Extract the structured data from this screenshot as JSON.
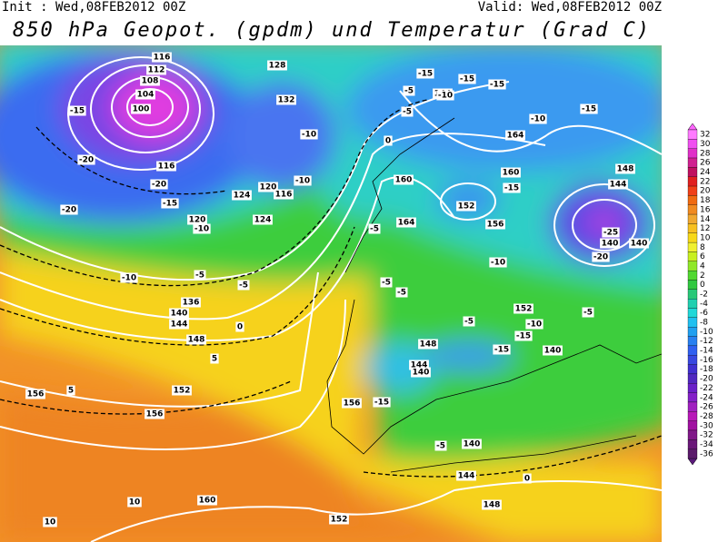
{
  "header": {
    "init": "Init : Wed,08FEB2012 00Z",
    "valid": "Valid: Wed,08FEB2012 00Z",
    "title": "850 hPa Geopot. (gpdm) und Temperatur (Grad C)"
  },
  "colorbar": {
    "levels": [
      32,
      30,
      28,
      26,
      24,
      22,
      20,
      18,
      16,
      14,
      12,
      10,
      8,
      6,
      4,
      2,
      0,
      -2,
      -4,
      -6,
      -8,
      -10,
      -12,
      -14,
      -16,
      -18,
      -20,
      -22,
      -24,
      -26,
      -28,
      -30,
      -32,
      -34,
      -36
    ]
  },
  "contour_labels": [
    "116",
    "112",
    "108",
    "104",
    "100",
    "116",
    "-15",
    "-20",
    "-20",
    "-15",
    "-20",
    "120",
    "-10",
    "-10",
    "-5",
    "-5",
    "136",
    "140",
    "144",
    "148",
    "0",
    "156",
    "156",
    "152",
    "5",
    "5",
    "160",
    "10",
    "10",
    "152",
    "148",
    "144",
    "140",
    "-5",
    "0",
    "156",
    "-15",
    "160",
    "164",
    "-5",
    "-5",
    "-5",
    "0",
    "144",
    "-15",
    "-15",
    "-15",
    "-10",
    "-15",
    "164",
    "160",
    "-15",
    "152",
    "156",
    "-10",
    "148",
    "144",
    "-25",
    "140",
    "140",
    "-20",
    "-5",
    "152",
    "-10",
    "-15",
    "140",
    "-15",
    "148",
    "144",
    "140",
    "-10",
    "124",
    "120",
    "116",
    "124",
    "-5",
    "-5",
    "-10",
    "128",
    "132",
    "-10",
    "-5"
  ]
}
